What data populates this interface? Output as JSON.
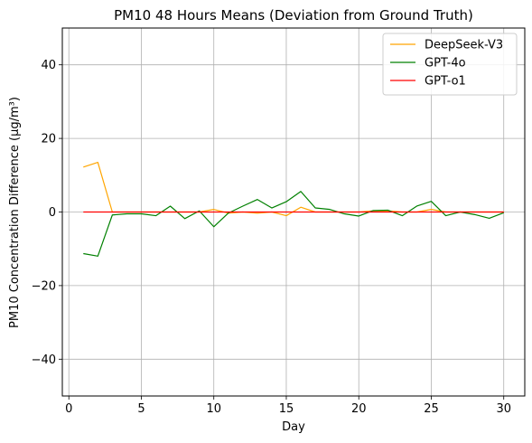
{
  "chart_data": {
    "type": "line",
    "title": "PM10 48 Hours Means (Deviation from Ground Truth)",
    "xlabel": "Day",
    "ylabel": "PM10 Concentration Difference (µg/m³)",
    "xlim": [
      -0.45,
      31.45
    ],
    "ylim": [
      -50,
      50
    ],
    "xticks": [
      0,
      5,
      10,
      15,
      20,
      25,
      30
    ],
    "yticks": [
      -40,
      -20,
      0,
      20,
      40
    ],
    "grid": true,
    "legend_position": "top-right",
    "x": [
      1,
      2,
      3,
      4,
      5,
      6,
      7,
      8,
      9,
      10,
      11,
      12,
      13,
      14,
      15,
      16,
      17,
      18,
      19,
      20,
      21,
      22,
      23,
      24,
      25,
      26,
      27,
      28,
      29,
      30
    ],
    "series": [
      {
        "name": "DeepSeek-V3",
        "color": "#ffa500",
        "values": [
          12.2,
          13.5,
          0.0,
          0.0,
          0.0,
          0.0,
          0.0,
          0.0,
          0.0,
          0.7,
          -0.3,
          0.0,
          -0.3,
          0.0,
          -1.0,
          1.3,
          0.0,
          0.0,
          0.0,
          0.0,
          0.3,
          0.3,
          0.0,
          0.0,
          0.7,
          0.0,
          0.0,
          0.0,
          0.0,
          0.0
        ]
      },
      {
        "name": "GPT-4o",
        "color": "#008000",
        "values": [
          -11.3,
          -12.0,
          -0.8,
          -0.5,
          -0.5,
          -1.0,
          1.6,
          -1.8,
          0.3,
          -4.0,
          -0.3,
          1.6,
          3.4,
          1.1,
          2.8,
          5.6,
          1.1,
          0.7,
          -0.5,
          -1.1,
          0.4,
          0.5,
          -1.0,
          1.6,
          2.9,
          -1.0,
          0.0,
          -0.7,
          -1.7,
          -0.2
        ]
      },
      {
        "name": "GPT-o1",
        "color": "#ff0000",
        "values": [
          0.0,
          0.0,
          0.0,
          0.0,
          0.0,
          0.0,
          0.0,
          0.0,
          0.0,
          0.0,
          0.0,
          0.0,
          0.0,
          0.0,
          0.0,
          0.0,
          0.0,
          0.0,
          0.0,
          0.0,
          0.0,
          0.0,
          0.0,
          0.0,
          0.0,
          0.0,
          0.0,
          0.0,
          0.0,
          0.0
        ]
      }
    ]
  }
}
